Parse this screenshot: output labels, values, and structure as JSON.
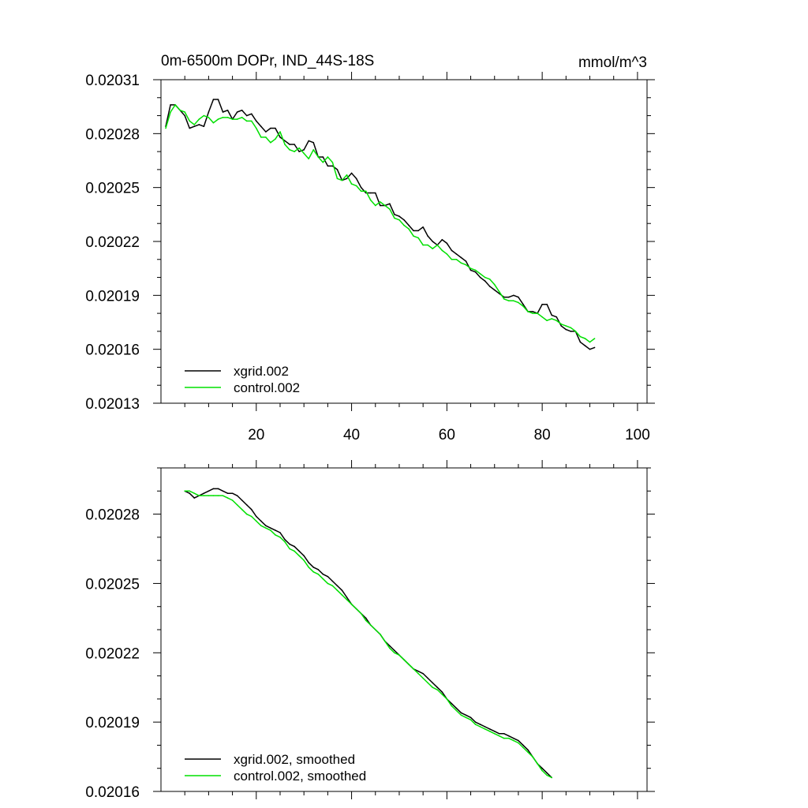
{
  "chart_data": [
    {
      "type": "line",
      "title": "0m-6500m DOPr, IND_44S-18S",
      "units": "mmol/m^3",
      "xlabel": "",
      "ylabel": "",
      "xlim": [
        0,
        102
      ],
      "ylim": [
        0.02013,
        0.02031
      ],
      "x_ticks": [
        20,
        40,
        60,
        80,
        100
      ],
      "x_tick_labels": [
        "20",
        "40",
        "60",
        "80",
        "100"
      ],
      "y_ticks": [
        0.02013,
        0.02016,
        0.02019,
        0.02022,
        0.02025,
        0.02028,
        0.02031
      ],
      "y_tick_labels": [
        "0.02013",
        "0.02016",
        "0.02019",
        "0.02022",
        "0.02025",
        "0.02028",
        "0.02031"
      ],
      "legend_position": "bottom-left",
      "x_start": 1,
      "series": [
        {
          "name": "xgrid.002",
          "color": "#000000",
          "values": [
            0.020284,
            0.020296,
            0.020296,
            0.020293,
            0.02029,
            0.020283,
            0.020284,
            0.020285,
            0.020284,
            0.020292,
            0.020299,
            0.020299,
            0.020292,
            0.020293,
            0.020288,
            0.020292,
            0.020293,
            0.02029,
            0.020291,
            0.020287,
            0.020284,
            0.020281,
            0.020283,
            0.020283,
            0.020278,
            0.020276,
            0.020274,
            0.020274,
            0.02027,
            0.020271,
            0.020276,
            0.020275,
            0.020267,
            0.020267,
            0.020262,
            0.020262,
            0.02026,
            0.020254,
            0.020255,
            0.020258,
            0.020255,
            0.02025,
            0.020247,
            0.020247,
            0.020247,
            0.02024,
            0.02024,
            0.020241,
            0.020235,
            0.020234,
            0.020232,
            0.020229,
            0.020226,
            0.020226,
            0.020228,
            0.020223,
            0.02022,
            0.020218,
            0.020221,
            0.020219,
            0.020215,
            0.020213,
            0.020211,
            0.020209,
            0.020204,
            0.020203,
            0.0202,
            0.020198,
            0.020195,
            0.020193,
            0.020191,
            0.020189,
            0.020189,
            0.02019,
            0.020189,
            0.020185,
            0.020181,
            0.020181,
            0.02018,
            0.020185,
            0.020185,
            0.020179,
            0.020178,
            0.020173,
            0.020171,
            0.02017,
            0.02017,
            0.020164,
            0.020162,
            0.02016,
            0.020161
          ]
        },
        {
          "name": "control.002",
          "color": "#00e000",
          "values": [
            0.020283,
            0.020292,
            0.020296,
            0.020293,
            0.020292,
            0.020287,
            0.020285,
            0.020288,
            0.02029,
            0.020289,
            0.020286,
            0.020288,
            0.020289,
            0.020289,
            0.020288,
            0.020288,
            0.020289,
            0.020287,
            0.020287,
            0.020283,
            0.020278,
            0.020278,
            0.020275,
            0.020277,
            0.020281,
            0.020274,
            0.020271,
            0.02027,
            0.020272,
            0.020269,
            0.020266,
            0.020271,
            0.020267,
            0.020264,
            0.020267,
            0.020264,
            0.020255,
            0.020254,
            0.020257,
            0.020252,
            0.020251,
            0.020248,
            0.020248,
            0.020243,
            0.02024,
            0.020242,
            0.02024,
            0.020238,
            0.020233,
            0.020232,
            0.020229,
            0.020227,
            0.020223,
            0.020222,
            0.020218,
            0.020218,
            0.020216,
            0.020218,
            0.020215,
            0.020213,
            0.02021,
            0.02021,
            0.020208,
            0.020207,
            0.020205,
            0.020204,
            0.020202,
            0.0202,
            0.020199,
            0.020196,
            0.020192,
            0.020188,
            0.020187,
            0.020187,
            0.020186,
            0.020184,
            0.020181,
            0.02018,
            0.02018,
            0.020178,
            0.020176,
            0.020177,
            0.020176,
            0.020174,
            0.020173,
            0.020172,
            0.02017,
            0.020167,
            0.020166,
            0.020164,
            0.020166
          ]
        }
      ]
    },
    {
      "type": "line",
      "title": "",
      "xlabel": "",
      "ylabel": "",
      "xlim": [
        0,
        102
      ],
      "ylim": [
        0.02016,
        0.0203
      ],
      "x_ticks": [
        20,
        40,
        60,
        80,
        100
      ],
      "x_tick_labels": [],
      "y_ticks": [
        0.02016,
        0.02019,
        0.02022,
        0.02025,
        0.02028
      ],
      "y_tick_labels": [
        "0.02016",
        "0.02019",
        "0.02022",
        "0.02025",
        "0.02028"
      ],
      "legend_position": "bottom-left",
      "x_start": 5,
      "series": [
        {
          "name": "xgrid.002, smoothed",
          "color": "#000000",
          "values": [
            0.02029,
            0.020289,
            0.020287,
            0.020288,
            0.020289,
            0.02029,
            0.020291,
            0.020291,
            0.02029,
            0.020289,
            0.020289,
            0.020288,
            0.020286,
            0.020284,
            0.020282,
            0.020279,
            0.020277,
            0.020275,
            0.020274,
            0.020273,
            0.020272,
            0.020269,
            0.020267,
            0.020266,
            0.020264,
            0.020262,
            0.020259,
            0.020257,
            0.020256,
            0.020254,
            0.020253,
            0.020251,
            0.020249,
            0.020247,
            0.020244,
            0.020241,
            0.020239,
            0.020237,
            0.020235,
            0.020232,
            0.02023,
            0.020228,
            0.020225,
            0.020223,
            0.020221,
            0.020219,
            0.020217,
            0.020215,
            0.020213,
            0.020212,
            0.020211,
            0.020209,
            0.020207,
            0.020205,
            0.020203,
            0.0202,
            0.020198,
            0.020196,
            0.020194,
            0.020193,
            0.020192,
            0.02019,
            0.020189,
            0.020188,
            0.020187,
            0.020186,
            0.020185,
            0.020185,
            0.020184,
            0.020183,
            0.020182,
            0.02018,
            0.020178,
            0.020175,
            0.020172,
            0.02017,
            0.020168,
            0.020166
          ]
        },
        {
          "name": "control.002, smoothed",
          "color": "#00e000",
          "values": [
            0.02029,
            0.02029,
            0.020289,
            0.020288,
            0.020288,
            0.020288,
            0.020288,
            0.020288,
            0.020288,
            0.020287,
            0.020286,
            0.020284,
            0.020282,
            0.02028,
            0.020279,
            0.020277,
            0.020275,
            0.020274,
            0.020273,
            0.020271,
            0.02027,
            0.020268,
            0.020265,
            0.020264,
            0.020262,
            0.02026,
            0.020257,
            0.020255,
            0.020254,
            0.020252,
            0.02025,
            0.020249,
            0.020247,
            0.020245,
            0.020243,
            0.020241,
            0.020239,
            0.020237,
            0.020234,
            0.020232,
            0.02023,
            0.020228,
            0.020225,
            0.020222,
            0.02022,
            0.020219,
            0.020217,
            0.020215,
            0.020213,
            0.020211,
            0.020209,
            0.020207,
            0.020205,
            0.020204,
            0.020202,
            0.0202,
            0.020197,
            0.020195,
            0.020193,
            0.020192,
            0.020191,
            0.020189,
            0.020188,
            0.020187,
            0.020186,
            0.020185,
            0.020184,
            0.020183,
            0.020183,
            0.020182,
            0.020181,
            0.020179,
            0.020177,
            0.020175,
            0.020172,
            0.020169,
            0.020167,
            0.020166
          ]
        }
      ]
    }
  ]
}
